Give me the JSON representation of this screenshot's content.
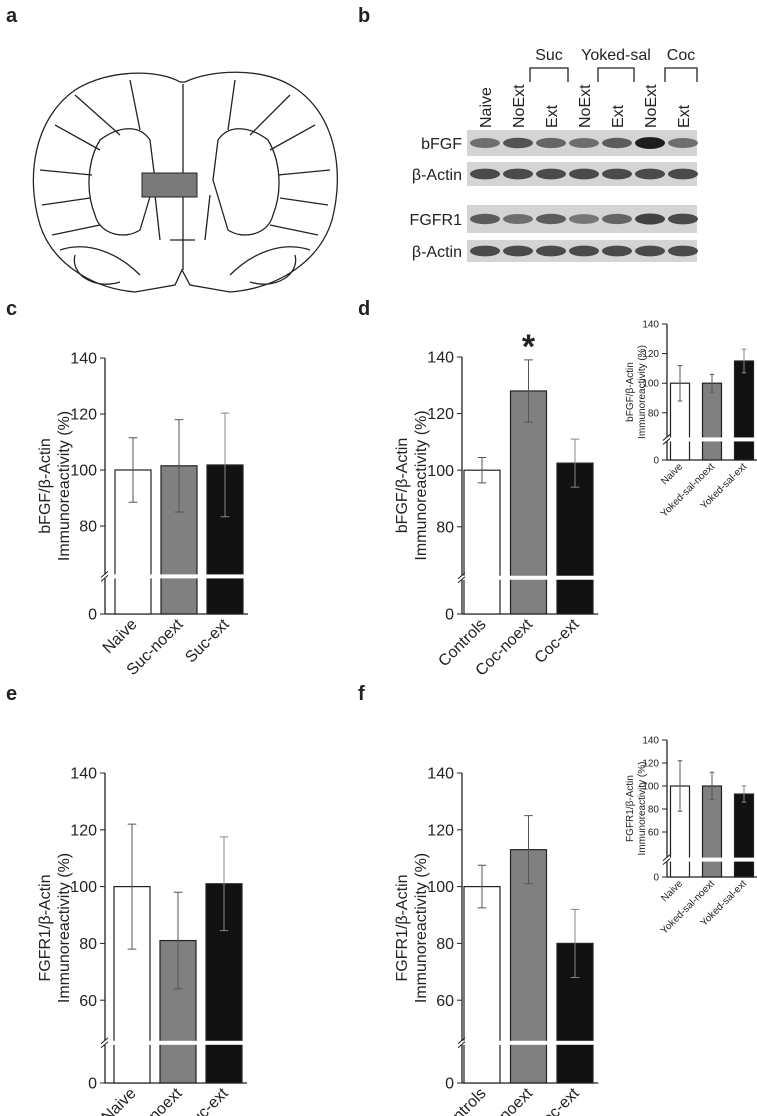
{
  "figure": {
    "panels": [
      "a",
      "b"
    ],
    "blot": {
      "lanes": [
        "Naive",
        "NoExt",
        "Ext",
        "NoExt",
        "Ext",
        "NoExt",
        "Ext"
      ],
      "groups": [
        "Suc",
        "Yoked-sal",
        "Coc"
      ],
      "rows": [
        "bFGF",
        "β-Actin",
        "FGFR1",
        "β-Actin"
      ]
    }
  },
  "chart_data": [
    {
      "type": "bar",
      "panel": "c",
      "ylabel": [
        "bFGF/β-Actin",
        "Immunoreactivity (%)"
      ],
      "categories": [
        "Naive",
        "Suc-noext",
        "Suc-ext"
      ],
      "values": [
        100,
        101.5,
        101.8
      ],
      "errors": [
        11.5,
        16.5,
        18.5
      ],
      "colors": [
        "#ffffff",
        "#808080",
        "#111111"
      ],
      "ylim": [
        0,
        140
      ],
      "yticks": [
        0,
        80,
        100,
        120,
        140
      ],
      "axis_break": 62
    },
    {
      "type": "bar",
      "panel": "d",
      "ylabel": [
        "bFGF/β-Actin",
        "Immunoreactivity (%)"
      ],
      "categories": [
        "Controls",
        "Coc-noext",
        "Coc-ext"
      ],
      "values": [
        100,
        128,
        102.5
      ],
      "errors": [
        4.5,
        11,
        8.5
      ],
      "colors": [
        "#ffffff",
        "#808080",
        "#111111"
      ],
      "ylim": [
        0,
        140
      ],
      "yticks": [
        0,
        80,
        100,
        120,
        140
      ],
      "axis_break": 62,
      "annotation": {
        "text": "*",
        "category": "Coc-noext"
      }
    },
    {
      "type": "bar",
      "ylabel": [
        "bFGF/β-Actin",
        "Immunoreactivity (%)"
      ],
      "categories": [
        "Naive",
        "Yoked-sal-noext",
        "Yoked-sal-ext"
      ],
      "values": [
        100,
        100,
        115
      ],
      "errors": [
        12,
        6,
        8
      ],
      "colors": [
        "#ffffff",
        "#808080",
        "#111111"
      ],
      "ylim": [
        0,
        140
      ],
      "yticks": [
        0,
        80,
        100,
        120,
        140
      ],
      "axis_break": 62
    },
    {
      "type": "bar",
      "panel": "e",
      "ylabel": [
        "FGFR1/β-Actin",
        "Immunoreactivity (%)"
      ],
      "categories": [
        "Naive",
        "Suc-noext",
        "Suc-ext"
      ],
      "values": [
        100,
        81,
        101
      ],
      "errors": [
        22,
        17,
        16.5
      ],
      "colors": [
        "#ffffff",
        "#808080",
        "#111111"
      ],
      "ylim": [
        0,
        140
      ],
      "yticks": [
        0,
        60,
        80,
        100,
        120,
        140
      ],
      "axis_break": 45
    },
    {
      "type": "bar",
      "panel": "f",
      "ylabel": [
        "FGFR1/β-Actin",
        "Immunoreactivity (%)"
      ],
      "categories": [
        "Controls",
        "Coc-noext",
        "Coc-ext"
      ],
      "values": [
        100,
        113,
        80
      ],
      "errors": [
        7.5,
        12,
        12
      ],
      "colors": [
        "#ffffff",
        "#808080",
        "#111111"
      ],
      "ylim": [
        0,
        140
      ],
      "yticks": [
        0,
        60,
        80,
        100,
        120,
        140
      ],
      "axis_break": 45
    },
    {
      "type": "bar",
      "ylabel": [
        "FGFR1/β-Actin",
        "Immunoreactivity (%)"
      ],
      "categories": [
        "Naive",
        "Yoked-sal-noext",
        "Yoked-sal-ext"
      ],
      "values": [
        100,
        100,
        93
      ],
      "errors": [
        22,
        12,
        7
      ],
      "colors": [
        "#ffffff",
        "#808080",
        "#111111"
      ],
      "ylim": [
        0,
        140
      ],
      "yticks": [
        0,
        60,
        80,
        100,
        120,
        140
      ],
      "axis_break": 36
    }
  ]
}
